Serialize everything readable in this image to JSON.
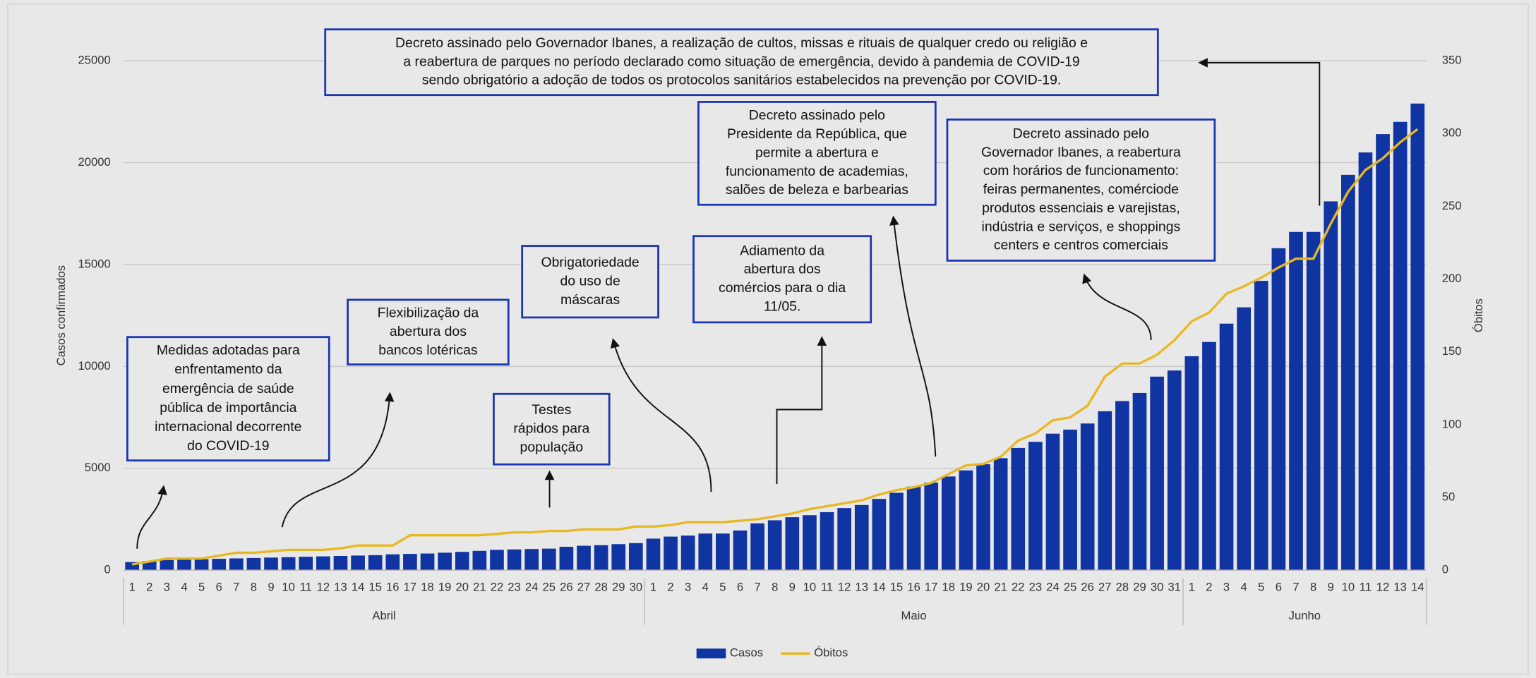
{
  "chart_data": {
    "type": "bar-line",
    "y_label": "Casos confirmados",
    "y2_label": "Óbitos",
    "categories": [
      {
        "label": "1",
        "group": "Abril"
      },
      {
        "label": "2",
        "group": "Abril"
      },
      {
        "label": "3",
        "group": "Abril"
      },
      {
        "label": "4",
        "group": "Abril"
      },
      {
        "label": "5",
        "group": "Abril"
      },
      {
        "label": "6",
        "group": "Abril"
      },
      {
        "label": "7",
        "group": "Abril"
      },
      {
        "label": "8",
        "group": "Abril"
      },
      {
        "label": "9",
        "group": "Abril"
      },
      {
        "label": "10",
        "group": "Abril"
      },
      {
        "label": "11",
        "group": "Abril"
      },
      {
        "label": "12",
        "group": "Abril"
      },
      {
        "label": "13",
        "group": "Abril"
      },
      {
        "label": "14",
        "group": "Abril"
      },
      {
        "label": "15",
        "group": "Abril"
      },
      {
        "label": "16",
        "group": "Abril"
      },
      {
        "label": "17",
        "group": "Abril"
      },
      {
        "label": "18",
        "group": "Abril"
      },
      {
        "label": "19",
        "group": "Abril"
      },
      {
        "label": "20",
        "group": "Abril"
      },
      {
        "label": "21",
        "group": "Abril"
      },
      {
        "label": "22",
        "group": "Abril"
      },
      {
        "label": "23",
        "group": "Abril"
      },
      {
        "label": "24",
        "group": "Abril"
      },
      {
        "label": "25",
        "group": "Abril"
      },
      {
        "label": "26",
        "group": "Abril"
      },
      {
        "label": "27",
        "group": "Abril"
      },
      {
        "label": "28",
        "group": "Abril"
      },
      {
        "label": "29",
        "group": "Abril"
      },
      {
        "label": "30",
        "group": "Abril"
      },
      {
        "label": "1",
        "group": "Maio"
      },
      {
        "label": "2",
        "group": "Maio"
      },
      {
        "label": "3",
        "group": "Maio"
      },
      {
        "label": "4",
        "group": "Maio"
      },
      {
        "label": "5",
        "group": "Maio"
      },
      {
        "label": "6",
        "group": "Maio"
      },
      {
        "label": "7",
        "group": "Maio"
      },
      {
        "label": "8",
        "group": "Maio"
      },
      {
        "label": "9",
        "group": "Maio"
      },
      {
        "label": "10",
        "group": "Maio"
      },
      {
        "label": "11",
        "group": "Maio"
      },
      {
        "label": "12",
        "group": "Maio"
      },
      {
        "label": "13",
        "group": "Maio"
      },
      {
        "label": "14",
        "group": "Maio"
      },
      {
        "label": "15",
        "group": "Maio"
      },
      {
        "label": "16",
        "group": "Maio"
      },
      {
        "label": "17",
        "group": "Maio"
      },
      {
        "label": "18",
        "group": "Maio"
      },
      {
        "label": "19",
        "group": "Maio"
      },
      {
        "label": "20",
        "group": "Maio"
      },
      {
        "label": "21",
        "group": "Maio"
      },
      {
        "label": "22",
        "group": "Maio"
      },
      {
        "label": "23",
        "group": "Maio"
      },
      {
        "label": "24",
        "group": "Maio"
      },
      {
        "label": "25",
        "group": "Maio"
      },
      {
        "label": "26",
        "group": "Maio"
      },
      {
        "label": "27",
        "group": "Maio"
      },
      {
        "label": "28",
        "group": "Maio"
      },
      {
        "label": "29",
        "group": "Maio"
      },
      {
        "label": "30",
        "group": "Maio"
      },
      {
        "label": "31",
        "group": "Maio"
      },
      {
        "label": "1",
        "group": "Junho"
      },
      {
        "label": "2",
        "group": "Junho"
      },
      {
        "label": "3",
        "group": "Junho"
      },
      {
        "label": "4",
        "group": "Junho"
      },
      {
        "label": "5",
        "group": "Junho"
      },
      {
        "label": "6",
        "group": "Junho"
      },
      {
        "label": "7",
        "group": "Junho"
      },
      {
        "label": "8",
        "group": "Junho"
      },
      {
        "label": "9",
        "group": "Junho"
      },
      {
        "label": "10",
        "group": "Junho"
      },
      {
        "label": "11",
        "group": "Junho"
      },
      {
        "label": "12",
        "group": "Junho"
      },
      {
        "label": "13",
        "group": "Junho"
      },
      {
        "label": "14",
        "group": "Junho"
      }
    ],
    "series": [
      {
        "name": "Casos",
        "color": "#1035a3",
        "kind": "bar",
        "values": [
          400,
          450,
          500,
          520,
          540,
          560,
          580,
          600,
          620,
          640,
          660,
          680,
          700,
          720,
          740,
          780,
          800,
          820,
          860,
          900,
          950,
          1000,
          1020,
          1040,
          1060,
          1150,
          1200,
          1230,
          1280,
          1330,
          1550,
          1650,
          1700,
          1800,
          1800,
          1950,
          2300,
          2450,
          2600,
          2700,
          2850,
          3050,
          3200,
          3500,
          3800,
          4100,
          4300,
          4600,
          4900,
          5200,
          5500,
          6000,
          6300,
          6700,
          6900,
          7200,
          7800,
          8300,
          8700,
          9500,
          9800,
          10500,
          11200,
          12100,
          12900,
          14200,
          15800,
          16600,
          16600,
          18100,
          19400,
          20500,
          21400,
          22000,
          22900
        ]
      },
      {
        "name": "Óbitos",
        "color": "#e8b820",
        "kind": "line",
        "axis": "y2",
        "values": [
          4,
          6,
          8,
          8,
          8,
          10,
          12,
          12,
          13,
          14,
          14,
          14,
          15,
          17,
          17,
          17,
          24,
          24,
          24,
          24,
          24,
          25,
          26,
          26,
          27,
          27,
          28,
          28,
          28,
          30,
          30,
          31,
          33,
          33,
          33,
          34,
          35,
          37,
          39,
          42,
          44,
          46,
          48,
          52,
          55,
          57,
          60,
          66,
          72,
          73,
          78,
          89,
          94,
          103,
          105,
          113,
          133,
          142,
          142,
          148,
          158,
          171,
          177,
          190,
          195,
          201,
          208,
          214,
          214,
          238,
          260,
          275,
          283,
          294,
          303
        ]
      }
    ],
    "ylim": [
      0,
      25000
    ],
    "yticks": [
      0,
      5000,
      10000,
      15000,
      20000,
      25000
    ],
    "y2lim": [
      0,
      350
    ],
    "y2ticks": [
      0,
      50,
      100,
      150,
      200,
      250,
      300,
      350
    ],
    "grid": true,
    "legend": "bottom",
    "annotations": [
      {
        "lines": [
          "Medidas adotadas para",
          "enfrentamento da",
          "emergência de saúde",
          "pública de importância",
          "internacional decorrente",
          "do COVID-19"
        ]
      },
      {
        "lines": [
          "Flexibilização da",
          "abertura dos",
          "bancos lotéricas"
        ]
      },
      {
        "lines": [
          "Testes",
          "rápidos para",
          "população"
        ]
      },
      {
        "lines": [
          "Obrigatoriedade",
          "do uso de",
          "máscaras"
        ]
      },
      {
        "lines": [
          "Adiamento da",
          "abertura dos",
          "comércios para o dia",
          "11/05."
        ]
      },
      {
        "lines": [
          "Decreto assinado pelo",
          "Presidente da República, que",
          "permite a abertura e",
          "funcionamento de academias,",
          "salões de beleza e barbearias"
        ]
      },
      {
        "lines": [
          "Decreto assinado pelo",
          "Governador Ibanes, a reabertura",
          "com horários de funcionamento:",
          "feiras permanentes, comérciode",
          "produtos essenciais e varejistas,",
          "indústria e serviços, e shoppings",
          "centers e centros comerciais"
        ]
      },
      {
        "lines": [
          "Decreto assinado pelo Governador Ibanes, a realização de cultos, missas e rituais de qualquer credo ou religião e",
          "a reabertura de parques no período declarado como situação de emergência, devido à pandemia de COVID-19",
          "sendo obrigatório a adoção de todos os protocolos sanitários estabelecidos na prevenção por COVID-19."
        ]
      }
    ]
  }
}
